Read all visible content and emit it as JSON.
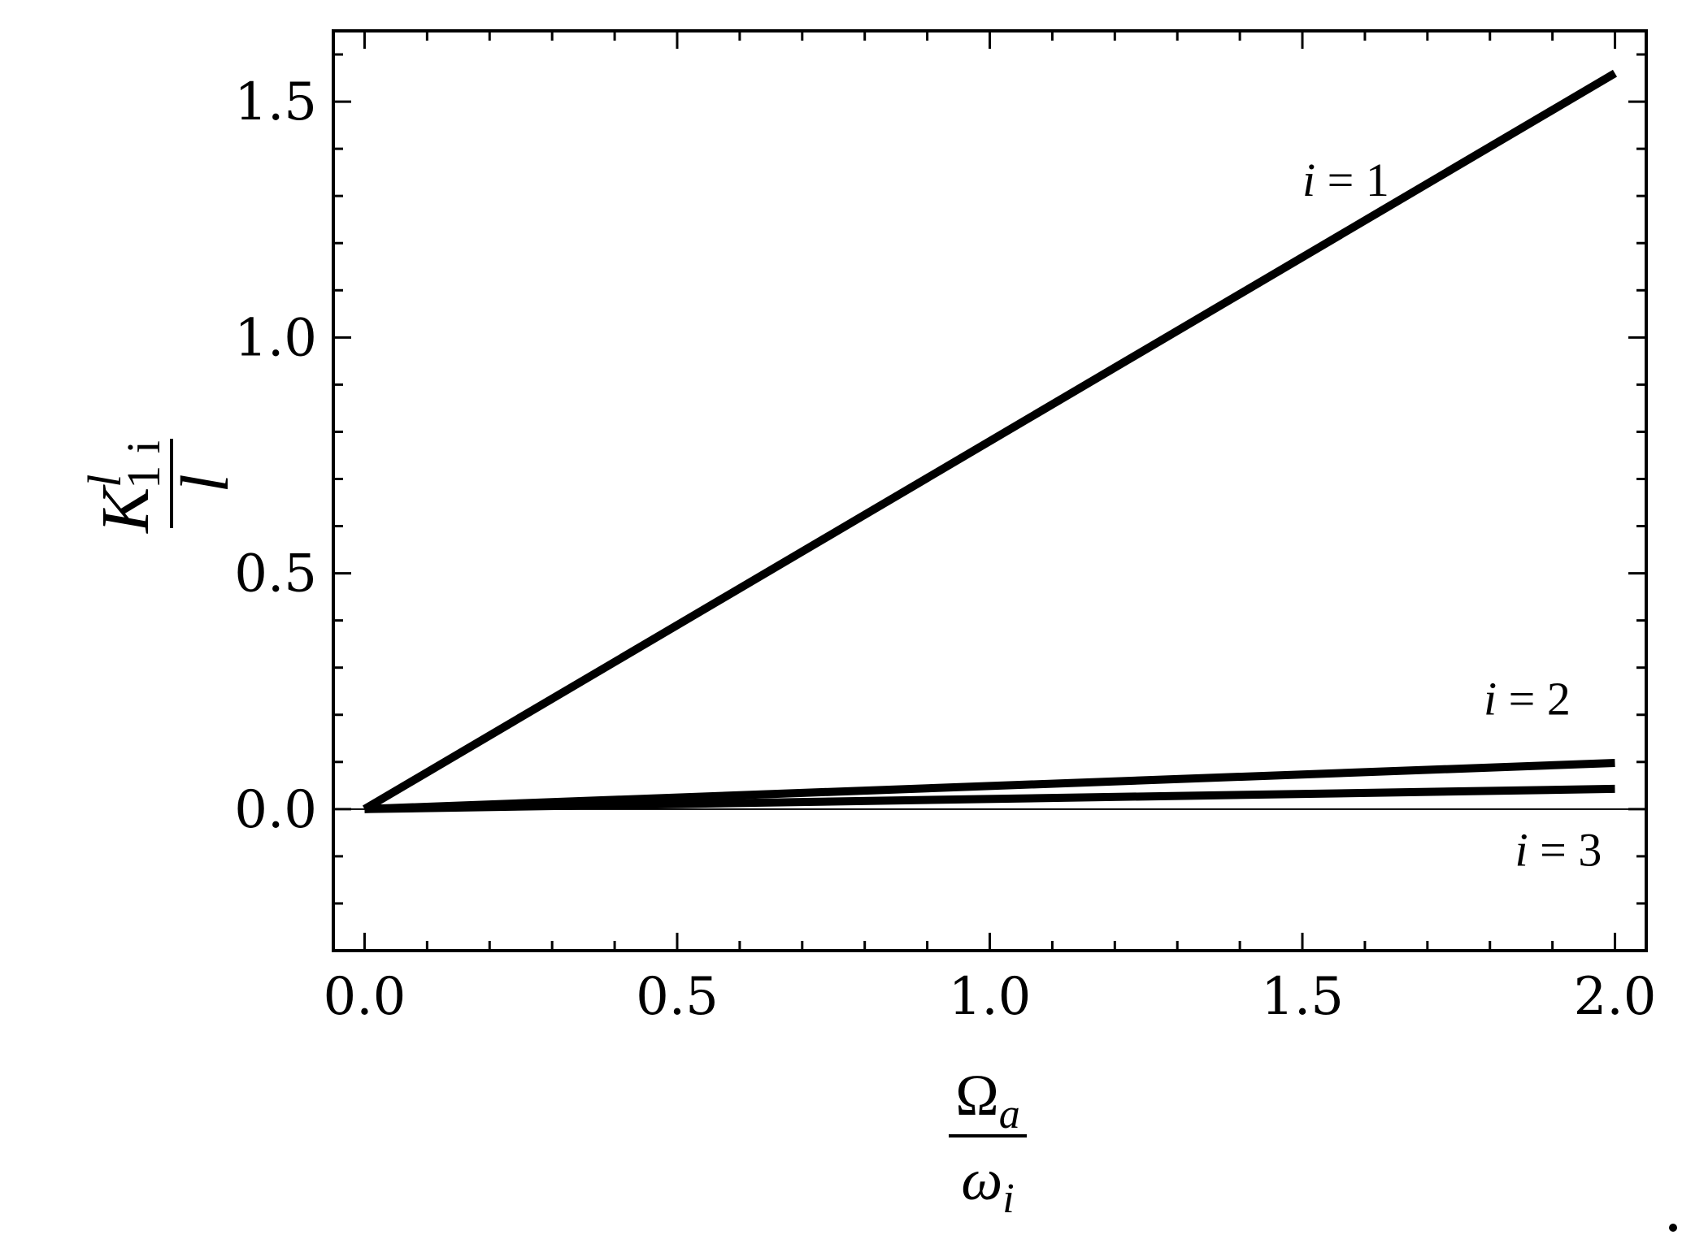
{
  "chart_data": {
    "type": "line",
    "xlim": [
      -0.05,
      2.05
    ],
    "ylim": [
      -0.3,
      1.65
    ],
    "x_ticks": [
      "0.0",
      "0.5",
      "1.0",
      "1.5",
      "2.0"
    ],
    "y_ticks": [
      "0.0",
      "0.5",
      "1.0",
      "1.5"
    ],
    "x_tick_values": [
      0,
      0.5,
      1.0,
      1.5,
      2.0
    ],
    "y_tick_values": [
      0,
      0.5,
      1.0,
      1.5
    ],
    "xlabel": {
      "numerator": "Ω",
      "numerator_sub": "a",
      "denominator": "ω",
      "denominator_sub": "i"
    },
    "ylabel": {
      "numerator": "K",
      "numerator_sub": "1 i",
      "numerator_sup": "l",
      "denominator": "l"
    },
    "grid": false,
    "series": [
      {
        "name": "i = 1",
        "x": [
          0,
          2.0
        ],
        "y": [
          0,
          1.56
        ]
      },
      {
        "name": "i = 2",
        "x": [
          0,
          2.0
        ],
        "y": [
          0,
          0.098
        ]
      },
      {
        "name": "i = 3",
        "x": [
          0,
          2.0
        ],
        "y": [
          0,
          0.043
        ]
      }
    ],
    "annotations": [
      {
        "var": "i",
        "text": " = 1",
        "x": 1.5,
        "y": 1.3
      },
      {
        "var": "i",
        "text": " = 2",
        "x": 1.79,
        "y": 0.2
      },
      {
        "var": "i",
        "text": " = 3",
        "x": 1.84,
        "y": -0.12
      }
    ],
    "colors": {
      "line": "#000000",
      "axis": "#000000",
      "background": "#ffffff"
    }
  }
}
